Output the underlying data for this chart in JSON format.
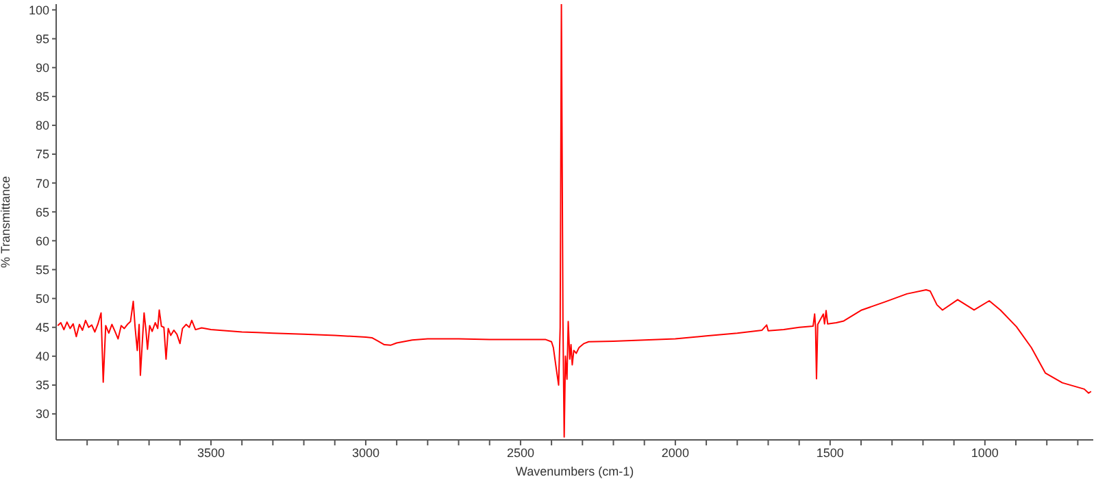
{
  "chart_data": {
    "type": "line",
    "xlabel": "Wavenumbers (cm-1)",
    "ylabel": "% Transmittance",
    "x": [
      3995,
      3985,
      3975,
      3965,
      3955,
      3945,
      3935,
      3925,
      3915,
      3905,
      3895,
      3885,
      3875,
      3865,
      3855,
      3848,
      3840,
      3830,
      3820,
      3810,
      3800,
      3790,
      3780,
      3770,
      3760,
      3751,
      3745,
      3738,
      3732,
      3728,
      3720,
      3716,
      3710,
      3705,
      3698,
      3690,
      3680,
      3672,
      3667,
      3660,
      3652,
      3645,
      3638,
      3630,
      3620,
      3610,
      3600,
      3592,
      3580,
      3570,
      3562,
      3550,
      3530,
      3500,
      3450,
      3400,
      3350,
      3300,
      3200,
      3100,
      3000,
      2980,
      2960,
      2940,
      2920,
      2900,
      2850,
      2800,
      2700,
      2600,
      2500,
      2420,
      2400,
      2394,
      2385,
      2377,
      2372,
      2368,
      2363,
      2359,
      2355,
      2350,
      2346,
      2341,
      2337,
      2333,
      2328,
      2320,
      2311,
      2295,
      2280,
      2200,
      2100,
      2000,
      1900,
      1800,
      1720,
      1705,
      1700,
      1650,
      1600,
      1555,
      1550,
      1547,
      1544,
      1540,
      1522,
      1518,
      1513,
      1508,
      1480,
      1456,
      1398,
      1323,
      1252,
      1190,
      1177,
      1155,
      1137,
      1088,
      1035,
      986,
      950,
      898,
      850,
      805,
      750,
      679,
      665,
      657
    ],
    "series": [
      {
        "color": "#ff0000",
        "values": [
          45.3,
          45.8,
          44.6,
          45.9,
          44.8,
          45.6,
          43.4,
          45.5,
          44.5,
          46.2,
          45.0,
          45.4,
          44.2,
          45.6,
          47.5,
          35.5,
          45.3,
          44.0,
          45.5,
          44.3,
          43.0,
          45.3,
          44.8,
          45.5,
          46.0,
          49.5,
          45.0,
          41.0,
          45.5,
          36.7,
          44.0,
          47.5,
          44.5,
          41.2,
          45.3,
          44.3,
          45.8,
          44.8,
          48.0,
          45.2,
          45.0,
          39.5,
          44.8,
          43.6,
          44.5,
          43.8,
          42.2,
          44.8,
          45.5,
          45.0,
          46.2,
          44.6,
          44.9,
          44.6,
          44.4,
          44.2,
          44.1,
          44.0,
          43.8,
          43.6,
          43.3,
          43.2,
          42.6,
          42.0,
          41.9,
          42.3,
          42.8,
          43.0,
          43.0,
          42.9,
          42.9,
          42.9,
          42.5,
          41.5,
          38.0,
          35.0,
          45.0,
          101,
          46,
          26,
          40,
          36,
          46,
          39.5,
          42,
          38.5,
          41,
          40.5,
          41.5,
          42.2,
          42.5,
          42.6,
          42.8,
          43.0,
          43.5,
          44.0,
          44.5,
          45.4,
          44.4,
          44.6,
          45.0,
          45.2,
          47.3,
          45.0,
          36.1,
          45.5,
          47.3,
          45.6,
          47.9,
          45.6,
          45.8,
          46.1,
          48.0,
          49.4,
          50.8,
          51.5,
          51.3,
          48.9,
          48.0,
          49.8,
          48.0,
          49.6,
          48.0,
          45.1,
          41.5,
          37.1,
          35.4,
          34.3,
          33.6,
          33.9
        ]
      }
    ],
    "xlim": [
      4000,
      650
    ],
    "xticks": [
      {
        "value": 3900,
        "label": null
      },
      {
        "value": 3800,
        "label": null
      },
      {
        "value": 3700,
        "label": null
      },
      {
        "value": 3600,
        "label": null
      },
      3500,
      {
        "value": 3400,
        "label": null
      },
      {
        "value": 3300,
        "label": null
      },
      {
        "value": 3200,
        "label": null
      },
      {
        "value": 3100,
        "label": null
      },
      3000,
      {
        "value": 2900,
        "label": null
      },
      {
        "value": 2800,
        "label": null
      },
      {
        "value": 2700,
        "label": null
      },
      {
        "value": 2600,
        "label": null
      },
      2500,
      {
        "value": 2400,
        "label": null
      },
      {
        "value": 2300,
        "label": null
      },
      {
        "value": 2200,
        "label": null
      },
      {
        "value": 2100,
        "label": null
      },
      2000,
      {
        "value": 1900,
        "label": null
      },
      {
        "value": 1800,
        "label": null
      },
      {
        "value": 1700,
        "label": null
      },
      {
        "value": 1600,
        "label": null
      },
      1500,
      {
        "value": 1400,
        "label": null
      },
      {
        "value": 1300,
        "label": null
      },
      {
        "value": 1200,
        "label": null
      },
      {
        "value": 1100,
        "label": null
      },
      1000,
      {
        "value": 900,
        "label": null
      },
      {
        "value": 800,
        "label": null
      },
      {
        "value": 700,
        "label": null
      }
    ],
    "ylim": [
      25.5,
      101
    ],
    "yticks": [
      30,
      35,
      40,
      45,
      50,
      55,
      60,
      65,
      70,
      75,
      80,
      85,
      90,
      95,
      100
    ],
    "grid": false,
    "legend": false,
    "marker": "none",
    "line_style": "solid"
  }
}
